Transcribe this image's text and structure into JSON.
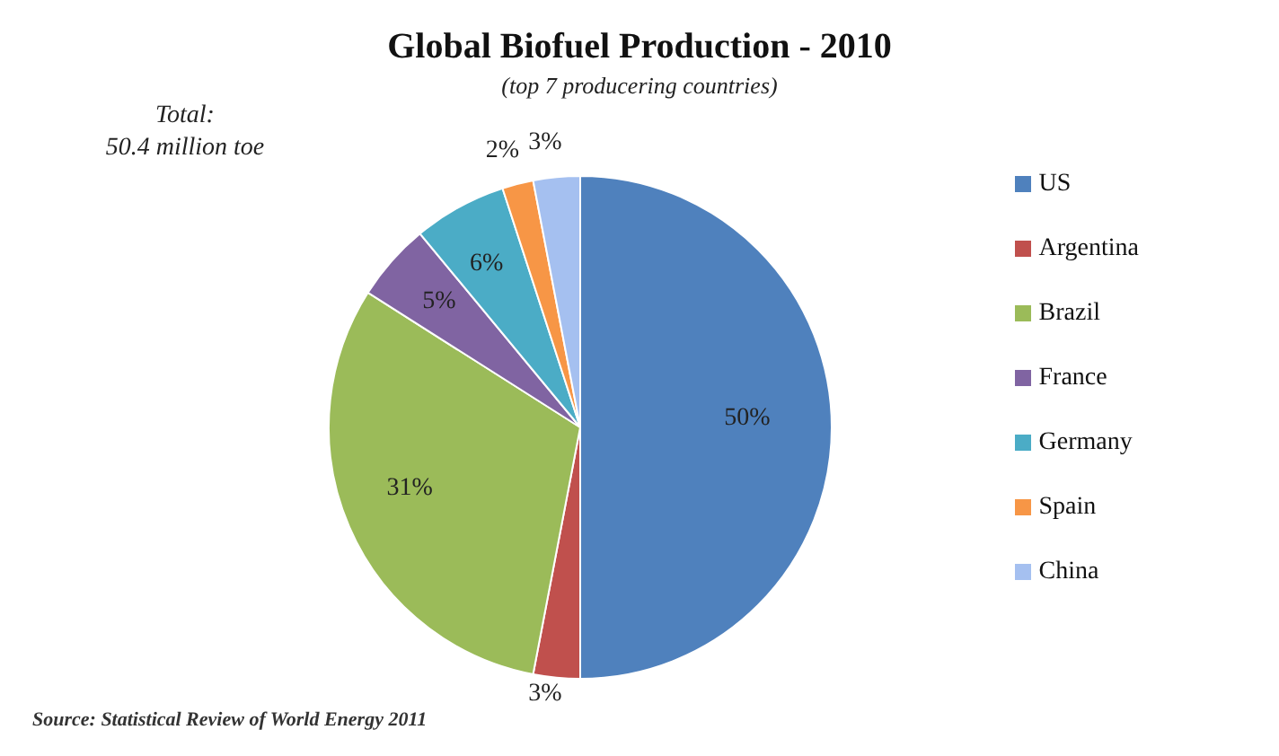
{
  "chart_data": {
    "type": "pie",
    "title": "Global Biofuel Production - 2010",
    "subtitle": "(top 7 producering countries)",
    "categories": [
      "US",
      "Argentina",
      "Brazil",
      "France",
      "Germany",
      "Spain",
      "China"
    ],
    "values": [
      50,
      3,
      31,
      5,
      6,
      2,
      3
    ],
    "colors": [
      "#4f81bd",
      "#c0504d",
      "#9bbb59",
      "#8064a2",
      "#4bacc6",
      "#f79646",
      "#a5c0f0"
    ],
    "value_labels": [
      "50%",
      "3%",
      "31%",
      "5%",
      "6%",
      "2%",
      "3%"
    ],
    "legend": "right",
    "annotations": [
      "Total:",
      "50.4 million toe",
      "Source: Statistical Review of World Energy 2011"
    ]
  }
}
